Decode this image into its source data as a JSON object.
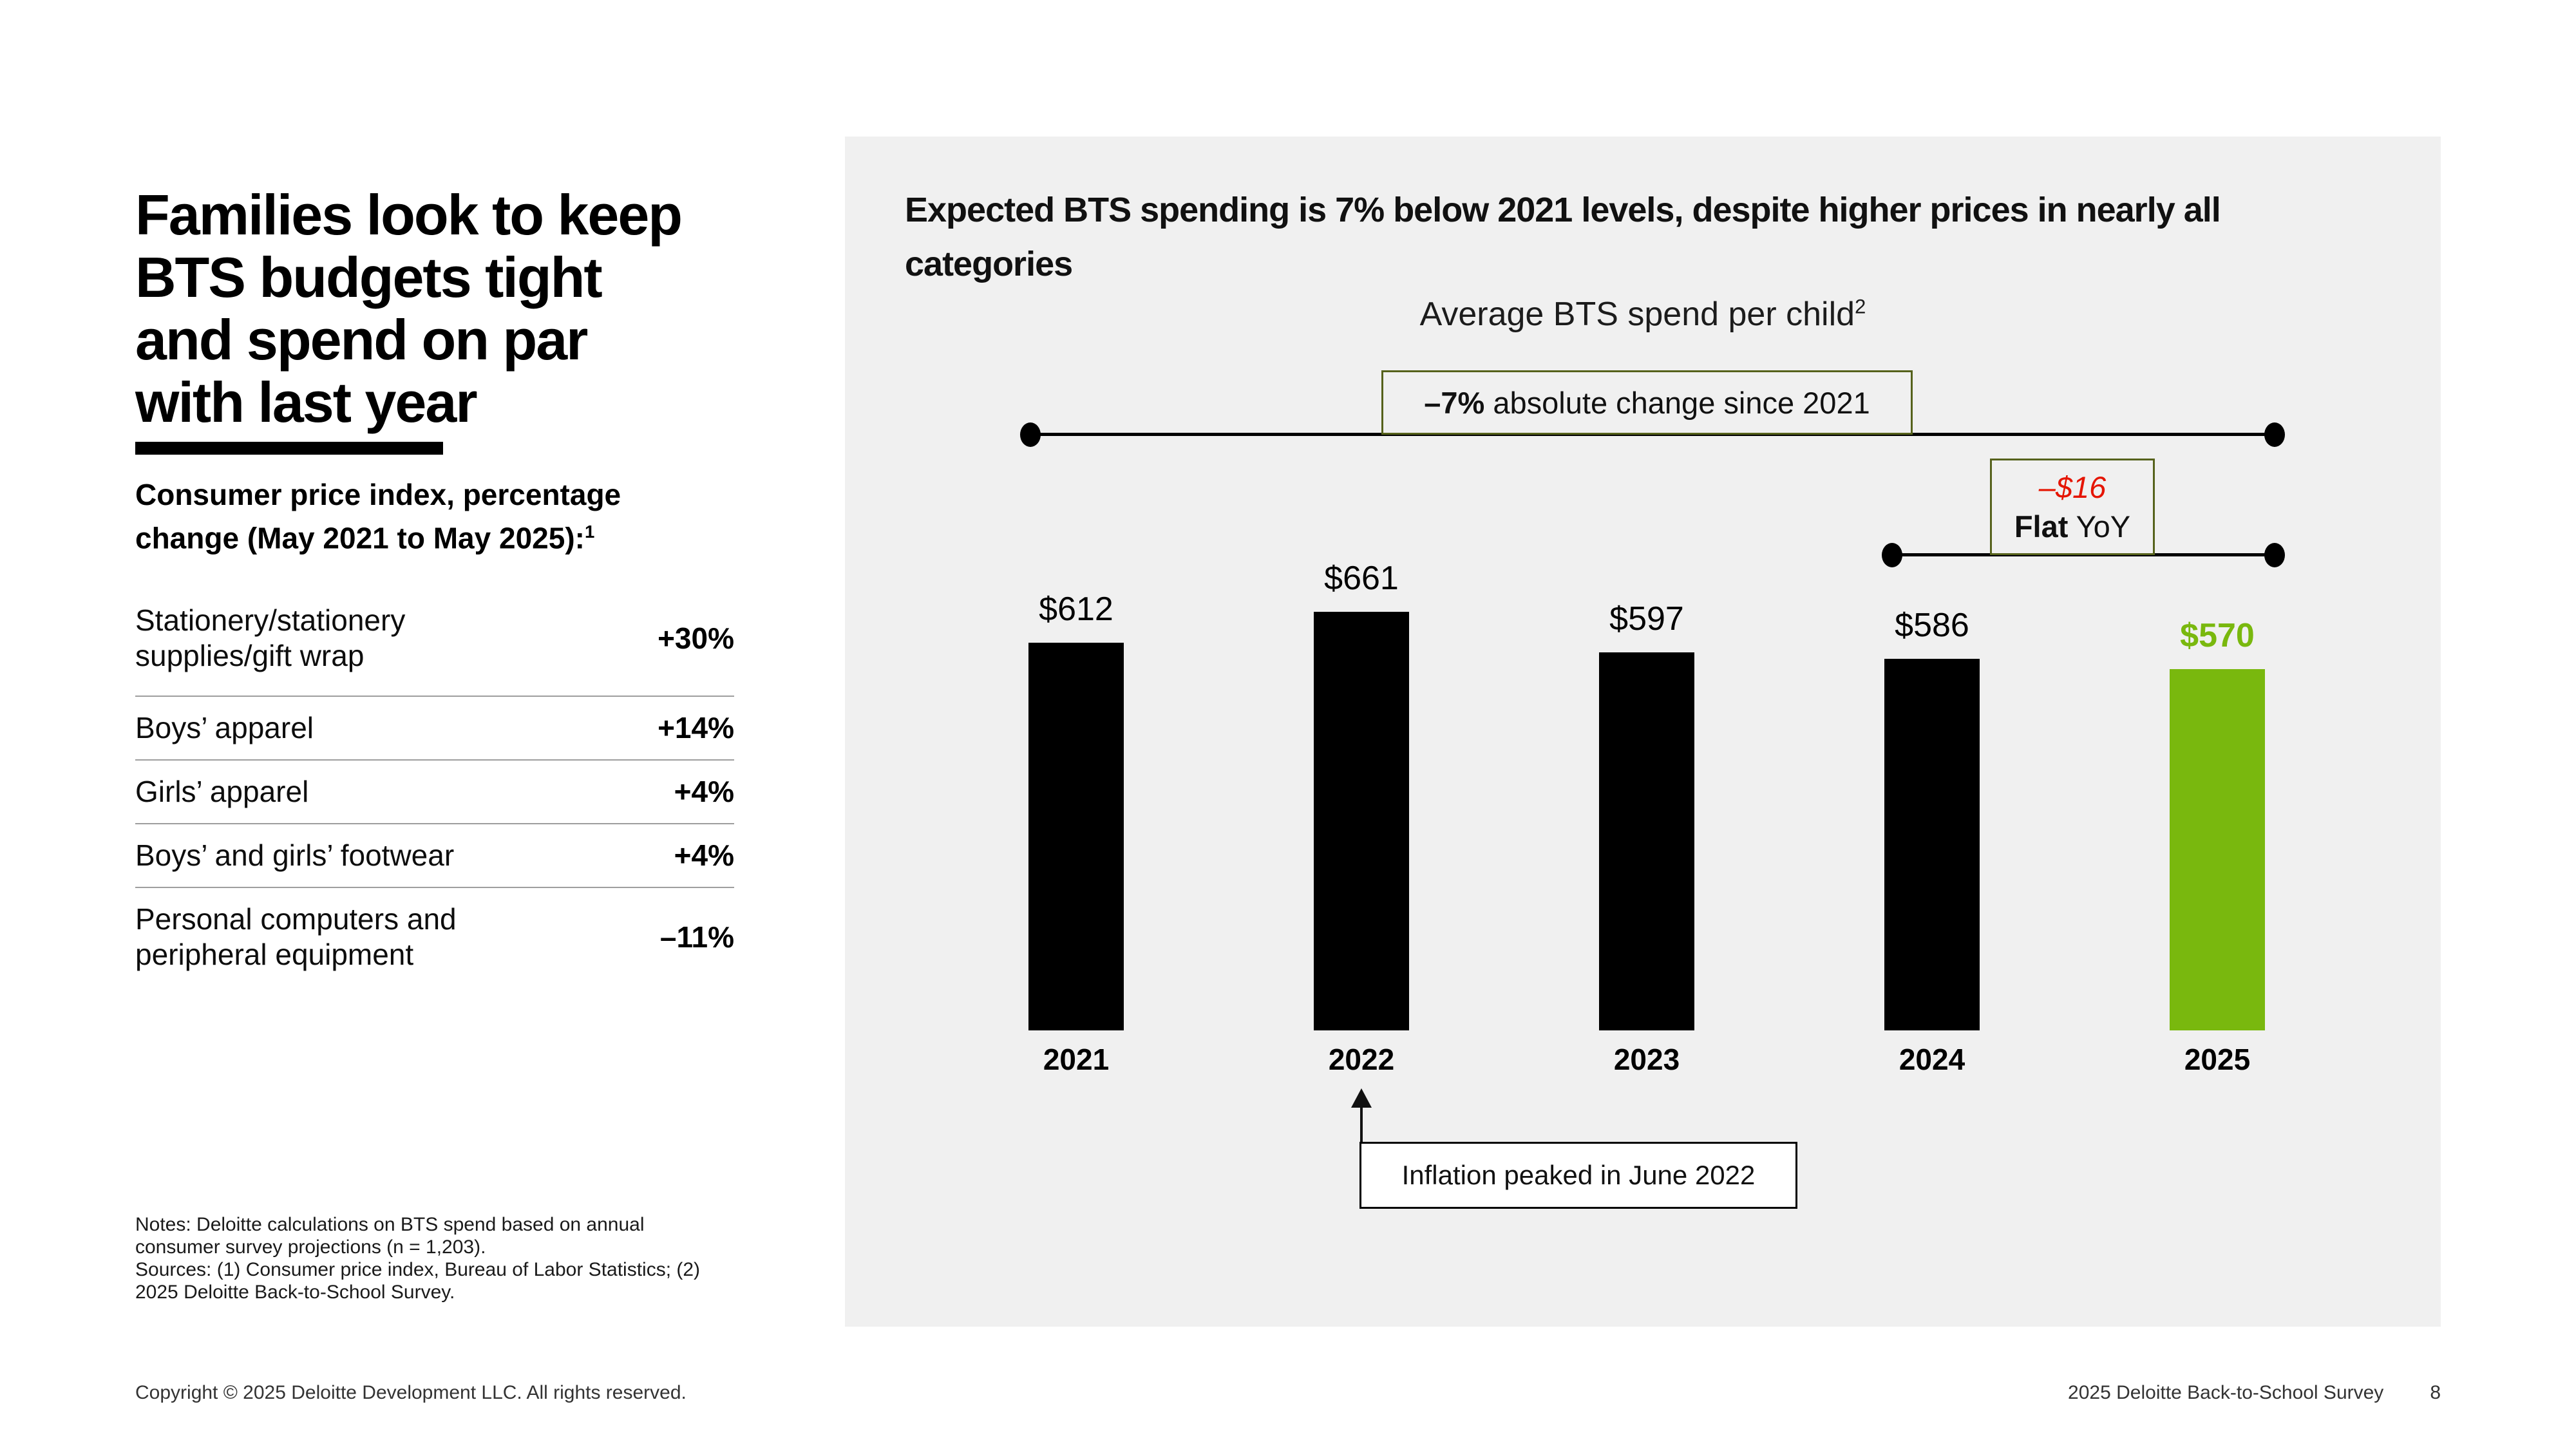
{
  "slide": {
    "title": "Families look to keep\nBTS budgets tight\nand spend on par\nwith last year",
    "cpi": {
      "heading": "Consumer price index, percentage\nchange (May 2021 to May 2025):",
      "heading_sup": "1",
      "rows": [
        {
          "label": "Stationery/stationery supplies/gift wrap",
          "value": "+30%"
        },
        {
          "label": "Boys’ apparel",
          "value": "+14%"
        },
        {
          "label": "Girls’ apparel",
          "value": "+4%"
        },
        {
          "label": "Boys’ and girls’ footwear",
          "value": "+4%"
        },
        {
          "label": "Personal computers and peripheral equipment",
          "value": "–11%"
        }
      ]
    },
    "notes": "Notes: Deloitte calculations on BTS spend based on annual\nconsumer survey projections (n = 1,203).\nSources: (1) Consumer price index, Bureau of Labor Statistics; (2)\n2025 Deloitte Back-to-School Survey.",
    "footer": {
      "copyright": "Copyright © 2025 Deloitte Development LLC. All rights reserved.",
      "source": "2025 Deloitte Back-to-School Survey",
      "page": "8"
    }
  },
  "panel": {
    "heading": "Expected BTS spending is 7% below 2021 levels, despite higher prices in nearly all\ncategories",
    "subtitle": "Average BTS spend per child",
    "subtitle_sup": "2",
    "annotation_total": {
      "bold": "–7%",
      "rest": " absolute change since 2021"
    },
    "annotation_yoy": {
      "delta": "–$16",
      "flat": "Flat",
      "flat_rest": " YoY"
    },
    "inflation_note": "Inflation peaked in June 2022",
    "colors": {
      "green": "#79b80e",
      "red": "#e51400",
      "olive": "#56621c",
      "panel_bg": "#f0f0f0"
    }
  },
  "chart_data": {
    "type": "bar",
    "title": "Average BTS spend per child",
    "categories": [
      "2021",
      "2022",
      "2023",
      "2024",
      "2025"
    ],
    "values": [
      612,
      661,
      597,
      586,
      570
    ],
    "value_labels": [
      "$612",
      "$661",
      "$597",
      "$586",
      "$570"
    ],
    "bar_colors": [
      "#000000",
      "#000000",
      "#000000",
      "#000000",
      "#79b80e"
    ],
    "highlight_index": 4,
    "ylim": [
      0,
      700
    ],
    "grid": false,
    "legend": false,
    "annotations": [
      {
        "text": "–7% absolute change since 2021",
        "span": [
          "2021",
          "2025"
        ]
      },
      {
        "text": "–$16 Flat YoY",
        "span": [
          "2024",
          "2025"
        ]
      },
      {
        "text": "Inflation peaked in June 2022",
        "target": "2022"
      }
    ]
  }
}
